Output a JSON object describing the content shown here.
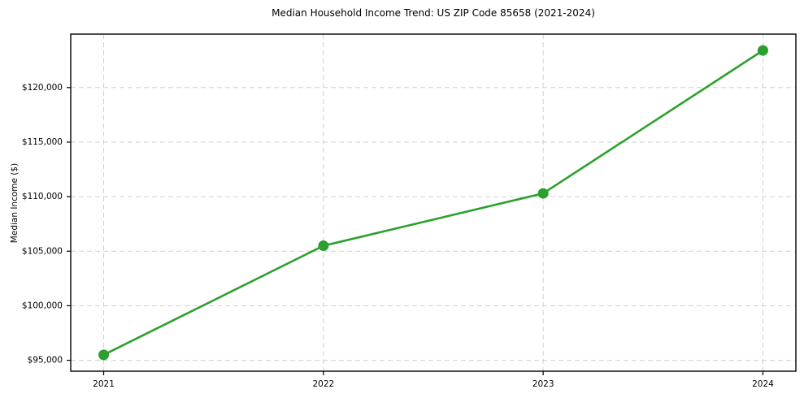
{
  "figure": {
    "title": "Median Household Income Trend: US ZIP Code 85658 (2021-2024)",
    "ylabel": "Median Income ($)"
  },
  "chart_data": {
    "type": "line",
    "title": "Median Household Income Trend: US ZIP Code 85658 (2021-2024)",
    "xlabel": "",
    "ylabel": "Median Income ($)",
    "categories": [
      2021,
      2022,
      2023,
      2024
    ],
    "x_tick_labels": [
      "2021",
      "2022",
      "2023",
      "2024"
    ],
    "values": [
      95500,
      105500,
      110300,
      123400
    ],
    "y_ticks": [
      95000,
      100000,
      105000,
      110000,
      115000,
      120000
    ],
    "y_tick_labels": [
      "$95,000",
      "$100,000",
      "$105,000",
      "$110,000",
      "$115,000",
      "$120,000"
    ],
    "xlim": [
      2020.85,
      2024.15
    ],
    "ylim": [
      94000,
      124900
    ],
    "grid": true,
    "grid_style": "dashed",
    "legend": "none",
    "line_color": "#2ca02c",
    "marker": "circle",
    "grid_color": "#cfcfcf",
    "spine_color": "#000000",
    "background_color": "#ffffff"
  }
}
